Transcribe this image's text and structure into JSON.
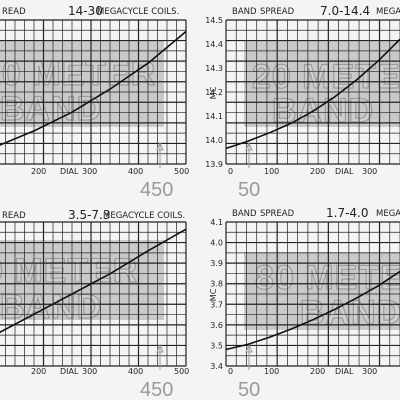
{
  "colors": {
    "shade": "#c9c9c9",
    "grid": "#222222",
    "curve": "#111111",
    "paper": "#f4f4f2",
    "ink": "#222222",
    "faint": "#9a9a9a"
  },
  "chart_data": [
    {
      "type": "line",
      "header": {
        "left": "READ",
        "range": "14-30",
        "right": "MEGACYCLE COILS."
      },
      "x_ticks": [
        "200",
        "DIAL",
        "300",
        "400",
        "500"
      ],
      "y_ticks": [],
      "ylabel": "",
      "marker_value": "450",
      "band_text": [
        "20 METER",
        "BAND"
      ],
      "xlim": [
        0,
        500
      ],
      "x": [
        0,
        100,
        200,
        300,
        400,
        500
      ],
      "y": [
        0.12,
        0.23,
        0.36,
        0.52,
        0.7,
        0.92
      ]
    },
    {
      "type": "line",
      "header": {
        "left": "BAND",
        "mid": "SPREAD",
        "range": "7.0-14.4",
        "right": "MEGA"
      },
      "x_ticks": [
        "0",
        "100",
        "200",
        "DIAL",
        "300"
      ],
      "y_ticks": [
        "14.5",
        "14.4",
        "14.3",
        "14.2",
        "14.1",
        "14.0",
        "13.9"
      ],
      "ylabel": "MC",
      "marker_value": "50",
      "band_text": [
        "20 METE",
        "BAND"
      ],
      "xlim": [
        0,
        400
      ],
      "ylim": [
        13.9,
        14.5
      ],
      "x": [
        0,
        50,
        100,
        150,
        200,
        250,
        300,
        350,
        400
      ],
      "y": [
        13.965,
        13.995,
        14.03,
        14.07,
        14.12,
        14.18,
        14.25,
        14.33,
        14.42
      ]
    },
    {
      "type": "line",
      "header": {
        "left": "READ",
        "range": "3.5-7.3",
        "right": "MEGACYCLE COILS."
      },
      "x_ticks": [
        "200",
        "DIAL",
        "300",
        "400",
        "500"
      ],
      "y_ticks": [],
      "ylabel": "",
      "marker_value": "450",
      "band_text": [
        "0 METER",
        "BAND"
      ],
      "xlim": [
        0,
        500
      ],
      "x": [
        0,
        100,
        200,
        300,
        400,
        500
      ],
      "y": [
        0.22,
        0.36,
        0.5,
        0.64,
        0.8,
        0.95
      ]
    },
    {
      "type": "line",
      "header": {
        "left": "BAND",
        "mid": "SPREAD",
        "range": "1.7-4.0",
        "right": "MEGA"
      },
      "x_ticks": [
        "0",
        "100",
        "200",
        "DIAL",
        "300"
      ],
      "y_ticks": [
        "4.1",
        "4.0",
        "3.9",
        "3.8",
        "3.7",
        "3.6",
        "3.5",
        "3.4"
      ],
      "ylabel": "MC",
      "marker_value": "50",
      "band_text": [
        "80 METE",
        "BAND"
      ],
      "xlim": [
        0,
        400
      ],
      "ylim": [
        3.4,
        4.1
      ],
      "x": [
        0,
        50,
        100,
        150,
        200,
        250,
        300,
        350,
        400
      ],
      "y": [
        3.48,
        3.505,
        3.54,
        3.58,
        3.625,
        3.675,
        3.73,
        3.79,
        3.86
      ]
    }
  ]
}
